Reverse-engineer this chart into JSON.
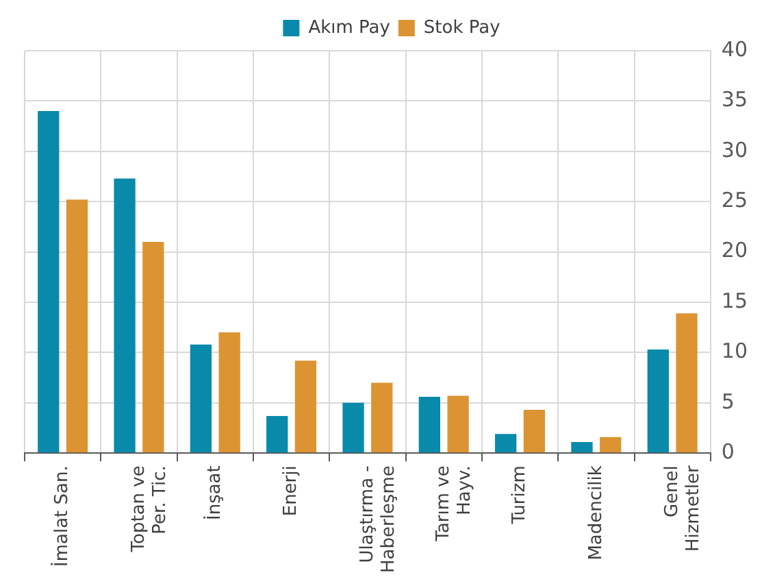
{
  "chart_data": {
    "type": "bar",
    "categories": [
      "İmalat San.",
      "Toptan ve\nPer. Tic.",
      "İnşaat",
      "Enerji",
      "Ulaştırma -\nHaberleşme",
      "Tarım ve\nHayv.",
      "Turizm",
      "Madencilik",
      "Genel\nHizmetler"
    ],
    "series": [
      {
        "name": "Akım Pay",
        "color": "#0a8aab",
        "values": [
          34.0,
          27.3,
          10.8,
          3.7,
          5.0,
          5.6,
          1.9,
          1.1,
          10.3
        ]
      },
      {
        "name": "Stok Pay",
        "color": "#dc9433",
        "values": [
          25.2,
          21.0,
          12.0,
          9.2,
          7.0,
          5.7,
          4.3,
          1.6,
          13.9
        ]
      }
    ],
    "ylim": [
      0,
      40
    ],
    "yticks": [
      0,
      5,
      10,
      15,
      20,
      25,
      30,
      35,
      40
    ],
    "grid": true,
    "legend": "top"
  }
}
